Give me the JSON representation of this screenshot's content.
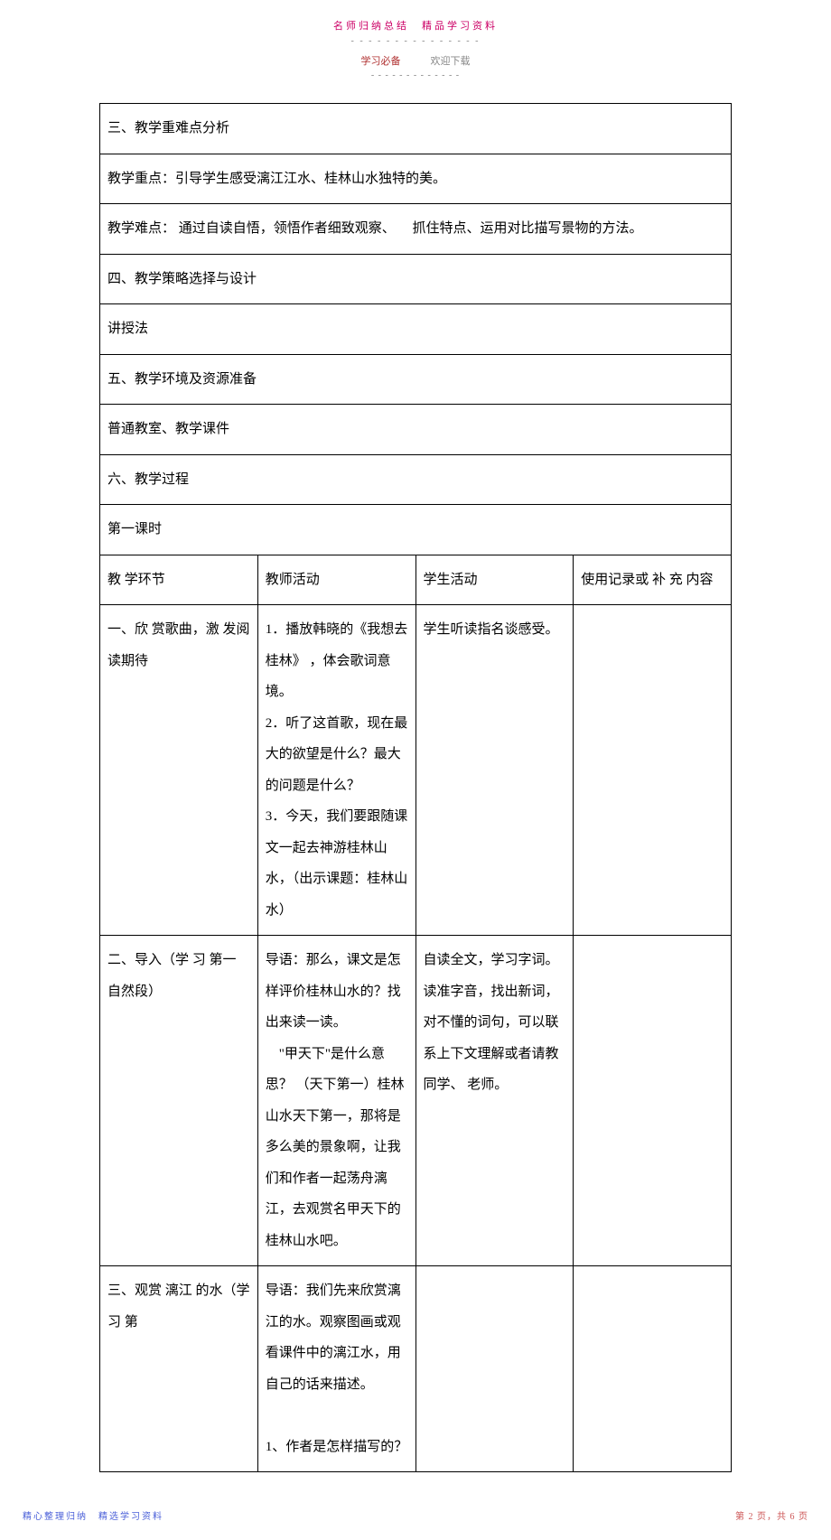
{
  "header": {
    "top": "名师归纳总结　精品学习资料",
    "underline": "- - - - - - - - - - - - - - -",
    "sub_left": "学习必备",
    "sub_right": "欢迎下载",
    "dashes": "- - - - - - - - - - - - -"
  },
  "sections": {
    "s3_title": "三、教学重难点分析",
    "s3_focus": "教学重点：引导学生感受漓江江水、桂林山水独特的美。",
    "s3_difficulty": "教学难点： 通过自读自悟，领悟作者细致观察、 　抓住特点、运用对比描写景物的方法。",
    "s4_title": "四、教学策略选择与设计",
    "s4_content": "讲授法",
    "s5_title": "五、教学环境及资源准备",
    "s5_content": "普通教室、教学课件",
    "s6_title": "六、教学过程",
    "lesson1": "第一课时"
  },
  "table_headers": {
    "col1": "教 学环节",
    "col2": "教师活动",
    "col3": "学生活动",
    "col4": "使用记录或 补 充 内容"
  },
  "rows": [
    {
      "step": "一、欣 赏歌曲，激 发阅 读期待",
      "teacher": "1．播放韩晓的《我想去桂林》 ，体会歌词意境。\n2．听了这首歌，现在最大的欲望是什么？最大的问题是什么？\n3．今天，我们要跟随课文一起去神游桂林山水，（出示课题：桂林山水）",
      "student": "学生听读指名谈感受。"
    },
    {
      "step": "二、导入（学 习 第一 自然段）",
      "teacher": "导语：那么，课文是怎样评价桂林山水的？找出来读一读。\n　\"甲天下\"是什么意思？ （天下第一）桂林山水天下第一，那将是多么美的景象啊，让我们和作者一起荡舟漓江，去观赏名甲天下的桂林山水吧。",
      "student": "自读全文，学习字词。\n读准字音，找出新词，对不懂的词句，可以联系上下文理解或者请教同学、 老师。"
    },
    {
      "step": "三、观赏 漓江 的水（学 习 第",
      "teacher": "导语：我们先来欣赏漓江的水。观察图画或观看课件中的漓江水，用自己的话来描述。\n\n1、作者是怎样描写的？",
      "student": ""
    }
  ],
  "footer": {
    "left": "精心整理归纳　精选学习资料",
    "right": "第 2 页，共 6 页"
  },
  "colors": {
    "header_pink": "#cc0066",
    "header_gray": "#888888",
    "text": "#000000",
    "footer_blue": "#4a5fd8",
    "footer_red": "#cc5555",
    "border": "#000000",
    "background": "#ffffff"
  },
  "fonts": {
    "body_size": 15,
    "header_size": 11,
    "footer_size": 10,
    "line_height": 2.3
  }
}
